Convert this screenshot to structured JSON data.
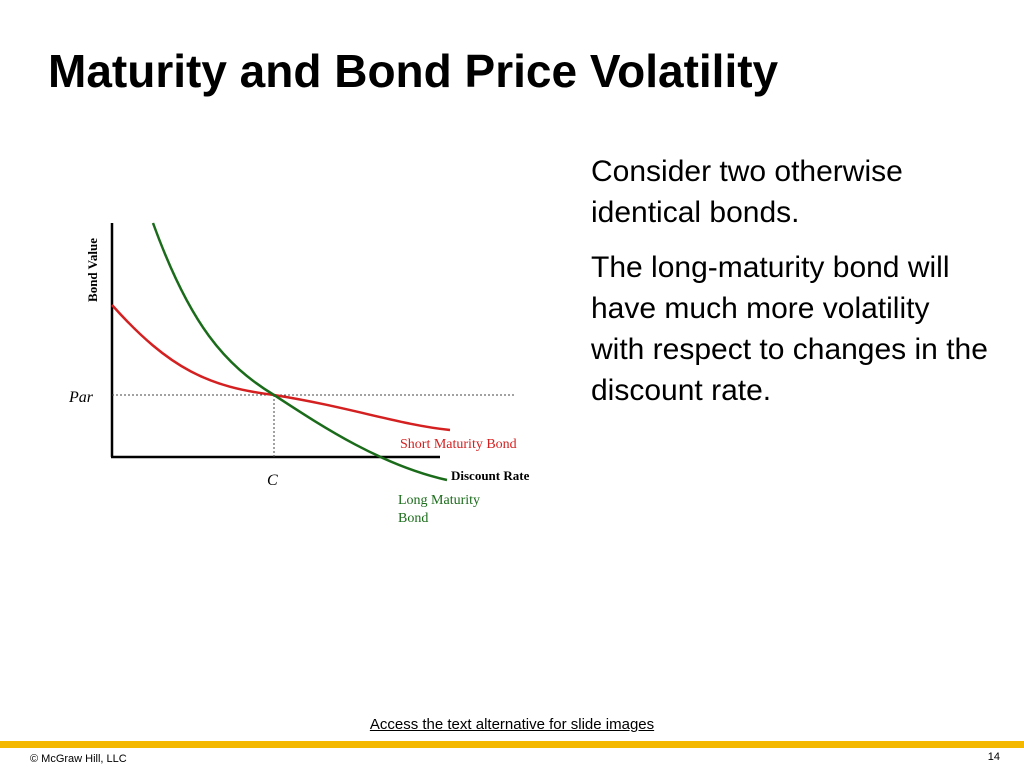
{
  "slide": {
    "title": "Maturity and Bond Price Volatility",
    "paragraphs": [
      "Consider two otherwise identical bonds.",
      "The long-maturity bond will have much more volatility with respect to changes in the discount rate."
    ],
    "alt_text_link": "Access the text alternative for slide images",
    "copyright": "© McGraw Hill, LLC",
    "page_number": "14",
    "accent_color": "#f5b800"
  },
  "diagram": {
    "y_axis_label": "Bond Value",
    "x_axis_label": "Discount Rate",
    "par_label": "Par",
    "crossing_label": "C",
    "short_curve_label": "Short Maturity Bond",
    "long_curve_label_line1": "Long Maturity",
    "long_curve_label_line2": "Bond",
    "short_color": "#d42020",
    "long_color": "#1a6b1a",
    "axis_color": "#000000"
  }
}
